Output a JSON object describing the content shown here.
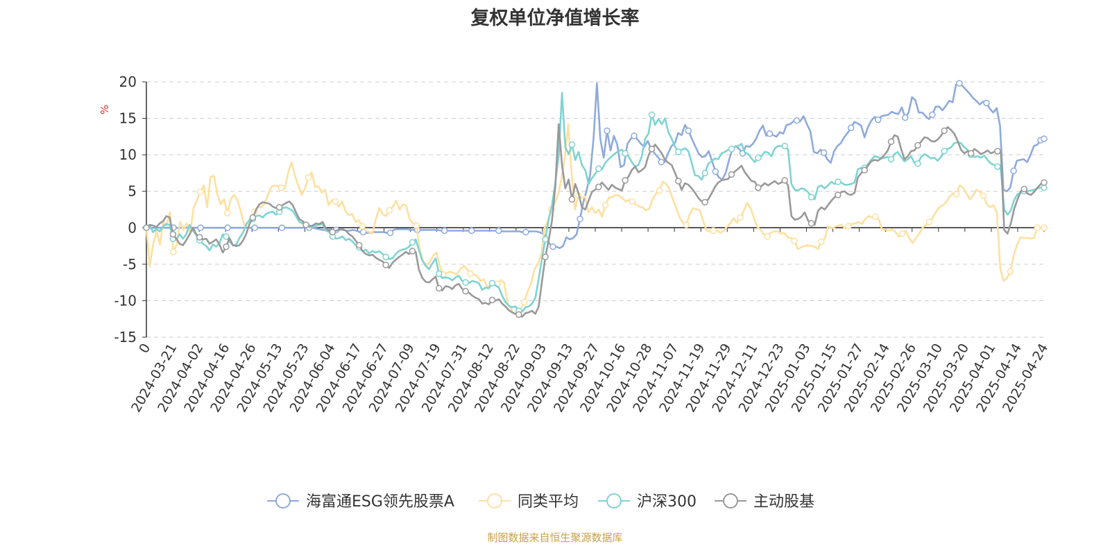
{
  "title": "复权单位净值增长率",
  "footer": "制图数据来自恒生聚源数据库",
  "chart_data": {
    "type": "line",
    "ylabel": "%",
    "ylim": [
      -15,
      20
    ],
    "yticks": [
      -15,
      -10,
      -5,
      0,
      5,
      10,
      15,
      20
    ],
    "grid": true,
    "legend_position": "bottom",
    "x_tick_labels": [
      "0",
      "2024-03-21",
      "2024-04-02",
      "2024-04-16",
      "2024-04-26",
      "2024-05-13",
      "2024-05-23",
      "2024-06-04",
      "2024-06-17",
      "2024-06-27",
      "2024-07-09",
      "2024-07-19",
      "2024-07-31",
      "2024-08-12",
      "2024-08-22",
      "2024-09-03",
      "2024-09-13",
      "2024-09-27",
      "2024-10-16",
      "2024-10-28",
      "2024-11-07",
      "2024-11-19",
      "2024-11-29",
      "2024-12-11",
      "2024-12-23",
      "2025-01-03",
      "2025-01-15",
      "2025-01-27",
      "2025-02-14",
      "2025-02-26",
      "2025-03-10",
      "2025-03-20",
      "2025-04-01",
      "2025-04-14",
      "2025-04-24"
    ],
    "series": [
      {
        "name": "海富通ESG领先股票A",
        "color": "#8eaadb",
        "values": [
          0,
          0,
          0,
          0,
          0,
          0,
          0,
          0,
          0,
          0,
          0,
          0,
          0,
          0,
          0,
          0,
          0,
          0,
          0,
          0,
          0,
          0,
          0,
          0,
          0,
          0,
          0,
          0,
          0,
          0,
          0,
          0,
          0,
          0,
          0,
          0,
          0,
          0,
          0,
          0,
          0,
          0,
          0,
          0,
          0,
          0,
          0,
          0,
          0,
          0,
          -0.1,
          -0.2,
          -0.3,
          -0.3,
          -0.2,
          -0.3,
          -0.3,
          -0.2,
          -0.3,
          -0.4,
          -0.4,
          -0.3,
          -0.4,
          -0.6,
          -0.6,
          -0.7,
          -0.7,
          -0.6,
          -0.6,
          -0.6,
          -0.6,
          -0.7,
          -0.7,
          -0.3,
          -0.2,
          -0.2,
          -0.2,
          -0.2,
          -0.3,
          -0.3,
          -0.3,
          -0.3,
          -0.3,
          -0.3,
          -0.3,
          -0.3,
          -0.3,
          -0.4,
          -0.4,
          -0.4,
          -0.4,
          -0.4,
          -0.4,
          -0.4,
          -0.4,
          -0.4,
          -0.4,
          -0.4,
          -0.4,
          -0.4,
          -0.4,
          -0.4,
          -0.4,
          -0.4,
          -0.4,
          -0.5,
          -0.5,
          -0.5,
          -0.5,
          -0.5,
          -0.5,
          -0.6,
          -0.6,
          -0.5,
          -0.5,
          -0.5,
          -0.6,
          -0.8,
          -1.2,
          -2.2,
          -2.6,
          -2.6,
          -2.8,
          -2.5,
          -1.3,
          -1.6,
          -1.4,
          -0.9,
          1.2,
          3.5,
          5.2,
          7.3,
          12.3,
          19.8,
          12.2,
          9.6,
          13.3,
          10.6,
          12.6,
          11.4,
          8.3,
          8.6,
          11.5,
          12.2,
          12.6,
          12.1,
          11.5,
          11.1,
          11.9,
          10.8,
          10.2,
          9.7,
          9.0,
          9.0,
          10.2,
          11.2,
          11.6,
          13.0,
          12.7,
          14.1,
          13.3,
          12.2,
          11.2,
          10.2,
          9.7,
          9.8,
          10.5,
          9.1,
          7.7,
          6.9,
          6.6,
          7.5,
          9.3,
          10.8,
          11.2,
          10.8,
          10.2,
          11.2,
          11.1,
          11.5,
          12.2,
          13.3,
          14.0,
          12.6,
          12.9,
          12.7,
          12.5,
          13.1,
          12.9,
          14.1,
          14.2,
          14.6,
          14.7,
          14.6,
          15.3,
          14.2,
          13.2,
          10.4,
          10.2,
          10.7,
          10.3,
          9.4,
          8.9,
          10.5,
          11.2,
          11.6,
          12.4,
          13.0,
          13.7,
          14.5,
          14.3,
          14.0,
          12.4,
          13.8,
          14.7,
          15.2,
          14.8,
          15.3,
          15.4,
          15.5,
          15.9,
          15.7,
          15.6,
          16.5,
          15.1,
          15.8,
          17.9,
          17.5,
          15.8,
          15.8,
          15.3,
          14.9,
          15.5,
          16.6,
          16.6,
          16.1,
          16.7,
          17.4,
          17.2,
          19.6,
          19.8,
          19.4,
          18.9,
          18.4,
          17.8,
          17.4,
          16.9,
          17.3,
          17.1,
          16.3,
          15.8,
          16.4,
          14.0,
          5.2,
          5.0,
          5.5,
          7.8,
          9.2,
          9.3,
          9.4,
          9.0,
          10.0,
          11.2,
          11.4,
          12.0,
          12.2
        ]
      },
      {
        "name": "同类平均",
        "color": "#fde0a0",
        "values": [
          0,
          -5.3,
          -2.3,
          -0.5,
          -2.3,
          0.8,
          0.3,
          2.1,
          -3.3,
          -2.3,
          0.8,
          -0.3,
          0.6,
          -0.7,
          2.8,
          3.8,
          4.9,
          5.8,
          2.8,
          7.0,
          7.1,
          4.6,
          3.2,
          3.9,
          2.0,
          3.9,
          4.5,
          3.8,
          2.2,
          0.4,
          0.7,
          1.2,
          2.2,
          2.9,
          2.8,
          3.3,
          4.5,
          5.6,
          5.8,
          5.7,
          5.5,
          5.4,
          7.5,
          9.0,
          7.2,
          5.8,
          4.5,
          5.4,
          6.9,
          7.6,
          5.6,
          5.7,
          4.8,
          5.2,
          3.1,
          3.8,
          3.6,
          2.9,
          3.6,
          2.3,
          1.7,
          1.9,
          0.8,
          1.0,
          0.2,
          -0.4,
          -0.6,
          -0.8,
          1.2,
          2.7,
          1.9,
          1.6,
          2.4,
          2.9,
          3.7,
          2.5,
          3.2,
          3.0,
          1.2,
          0.6,
          0.3,
          -2.9,
          -4.6,
          -5.1,
          -4.7,
          -3.8,
          -3.4,
          -5.3,
          -6.4,
          -6.2,
          -6.0,
          -6.2,
          -6.4,
          -5.7,
          -5.2,
          -5.7,
          -6.3,
          -6.4,
          -6.6,
          -7.3,
          -7.1,
          -8.1,
          -8.0,
          -7.6,
          -7.7,
          -7.2,
          -7.5,
          -10.3,
          -11.1,
          -11.9,
          -11.5,
          -11.0,
          -10.2,
          -8.7,
          -7.6,
          -5.7,
          -5.0,
          -3.7,
          -0.1,
          1.0,
          2.5,
          3.3,
          4.6,
          6.7,
          9.7,
          14.2,
          7.5,
          2.5,
          4.4,
          4.1,
          4.3,
          2.1,
          2.8,
          2.0,
          2.5,
          1.5,
          3.1,
          4.1,
          4.2,
          4.5,
          4.4,
          4.1,
          3.6,
          3.8,
          3.6,
          3.2,
          2.9,
          2.8,
          2.4,
          2.6,
          3.9,
          4.7,
          5.1,
          6.3,
          6.0,
          5.3,
          3.9,
          2.7,
          1.4,
          0.7,
          0.4,
          1.9,
          2.7,
          2.5,
          2.4,
          0.9,
          -0.4,
          -0.5,
          -0.4,
          -0.3,
          -0.7,
          -0.4,
          0.1,
          0.6,
          1.3,
          0.7,
          1.4,
          2.3,
          3.4,
          2.7,
          1.4,
          0.1,
          -0.3,
          -0.9,
          -1.2,
          -0.7,
          -0.5,
          -0.5,
          -0.8,
          -0.7,
          -1.3,
          -1.4,
          -1.8,
          -2.9,
          -2.7,
          -2.5,
          -2.4,
          -2.5,
          -2.6,
          -2.9,
          -1.9,
          -1.5,
          0.2,
          -0.1,
          0.1,
          0.3,
          0.4,
          -0.1,
          0.2,
          0.5,
          0.6,
          0.8,
          0.5,
          1.2,
          1.6,
          1.4,
          1.5,
          1.2,
          -0.3,
          -0.2,
          -0.4,
          -0.2,
          -0.6,
          -1.2,
          -0.8,
          -0.4,
          -1.4,
          -2.1,
          -1.4,
          -0.8,
          0.0,
          0.4,
          0.8,
          1.4,
          2.2,
          2.8,
          3.1,
          3.5,
          4.3,
          4.7,
          4.6,
          5.8,
          5.5,
          4.7,
          3.9,
          4.5,
          5.2,
          4.9,
          4.4,
          3.3,
          2.8,
          3.1,
          2.1,
          -5.6,
          -7.3,
          -6.9,
          -6.0,
          -3.8,
          -2.3,
          -1.3,
          -1.4,
          -1.4,
          -1.5,
          -1.4,
          0.0,
          0.0,
          0.0
        ]
      },
      {
        "name": "沪深300",
        "color": "#7fd3d3",
        "values": [
          0,
          0.3,
          -0.6,
          -0.2,
          -0.5,
          0.2,
          0.5,
          0.4,
          -1.5,
          -1.6,
          -0.9,
          -1.5,
          -0.9,
          0.4,
          -0.4,
          -1.0,
          -1.7,
          -2.2,
          -2.5,
          -3.1,
          -2.3,
          -2.6,
          -2.1,
          -0.9,
          -1.2,
          -1.9,
          -2.4,
          -2.3,
          -1.4,
          -0.7,
          0.4,
          1.1,
          1.2,
          1.6,
          1.7,
          1.4,
          1.9,
          2.1,
          2.2,
          1.8,
          2.2,
          2.7,
          2.8,
          2.6,
          2.3,
          1.6,
          0.8,
          0.6,
          0.4,
          0.1,
          0.1,
          0.3,
          0.4,
          0.5,
          -0.4,
          -0.6,
          -1.2,
          -1.5,
          -1.4,
          -1.2,
          -1.7,
          -1.5,
          -1.9,
          -2.4,
          -2.7,
          -3.2,
          -3.0,
          -3.5,
          -3.2,
          -3.4,
          -3.2,
          -3.6,
          -4.0,
          -4.3,
          -4.2,
          -3.6,
          -3.2,
          -3.0,
          -2.9,
          -2.6,
          -2.0,
          -1.6,
          -3.1,
          -4.5,
          -5.2,
          -5.7,
          -4.9,
          -4.2,
          -6.3,
          -6.9,
          -6.8,
          -6.9,
          -7.2,
          -6.8,
          -6.6,
          -7.3,
          -7.5,
          -7.6,
          -7.3,
          -7.4,
          -7.6,
          -8.5,
          -8.2,
          -8.3,
          -7.6,
          -7.9,
          -8.2,
          -9.3,
          -10.2,
          -10.7,
          -10.9,
          -10.8,
          -11.4,
          -11.5,
          -10.9,
          -10.8,
          -10.4,
          -9.6,
          -7.0,
          -4.2,
          -1.6,
          1.2,
          3.1,
          6.2,
          9.8,
          18.5,
          11.0,
          10.1,
          11.4,
          9.3,
          10.4,
          8.6,
          7.9,
          6.0,
          6.8,
          7.4,
          8.1,
          8.0,
          8.9,
          9.4,
          9.8,
          10.2,
          10.5,
          10.7,
          10.2,
          9.8,
          9.0,
          8.4,
          8.6,
          9.8,
          12.2,
          12.9,
          15.5,
          14.1,
          14.9,
          14.2,
          15.0,
          13.1,
          12.2,
          11.1,
          10.4,
          10.7,
          10.9,
          10.5,
          8.9,
          7.2,
          7.1,
          6.6,
          7.5,
          8.8,
          9.1,
          9.5,
          9.4,
          10.2,
          10.4,
          10.7,
          10.8,
          11.1,
          11.2,
          11.5,
          10.3,
          10.1,
          9.5,
          9.0,
          9.6,
          9.8,
          10.4,
          10.3,
          9.8,
          10.9,
          11.2,
          11.2,
          11.2,
          10.7,
          6.0,
          5.2,
          5.1,
          5.4,
          5.3,
          4.9,
          4.2,
          3.9,
          5.6,
          5.8,
          5.4,
          5.8,
          6.3,
          6.0,
          6.3,
          6.2,
          5.9,
          5.9,
          6.0,
          6.2,
          8.0,
          8.2,
          8.2,
          8.7,
          9.3,
          9.8,
          9.7,
          9.5,
          9.6,
          9.7,
          9.4,
          10.1,
          10.4,
          9.7,
          9.1,
          9.4,
          9.8,
          8.9,
          8.8,
          9.7,
          10.1,
          9.8,
          9.5,
          9.6,
          9.2,
          9.7,
          10.5,
          10.8,
          11.0,
          11.6,
          11.7,
          11.6,
          11.0,
          10.7,
          10.0,
          9.7,
          9.8,
          9.6,
          9.9,
          9.3,
          8.8,
          8.6,
          8.4,
          8.0,
          2.5,
          1.8,
          2.4,
          3.8,
          4.6,
          4.8,
          5.0,
          5.0,
          5.1,
          5.2,
          5.4,
          5.5,
          5.5
        ]
      },
      {
        "name": "主动股基",
        "color": "#999999",
        "values": [
          0,
          0.4,
          0.3,
          0.1,
          0.6,
          0.9,
          1.6,
          1.4,
          -0.9,
          -1.5,
          -2.2,
          -2.4,
          -1.7,
          -0.9,
          0.0,
          -0.9,
          -1.3,
          -1.6,
          -1.5,
          -2.2,
          -1.9,
          -1.6,
          -2.3,
          -3.4,
          -2.6,
          -1.4,
          -2.4,
          -2.5,
          -2.4,
          -1.8,
          -0.9,
          0.5,
          1.4,
          2.5,
          3.2,
          3.5,
          3.4,
          3.3,
          2.9,
          2.7,
          2.8,
          3.1,
          3.4,
          3.6,
          3.1,
          2.1,
          1.2,
          0.9,
          0.4,
          0.2,
          0.3,
          0.6,
          0.5,
          0.8,
          -0.1,
          -0.4,
          -0.6,
          -0.4,
          -0.3,
          -0.2,
          -0.4,
          -0.9,
          -1.2,
          -1.8,
          -2.4,
          -3.2,
          -3.6,
          -3.8,
          -3.7,
          -4.1,
          -4.4,
          -4.6,
          -5.1,
          -5.5,
          -4.8,
          -4.4,
          -4.0,
          -3.7,
          -3.3,
          -3.6,
          -3.2,
          -3.3,
          -5.8,
          -6.9,
          -7.4,
          -7.5,
          -7.1,
          -6.7,
          -8.3,
          -8.6,
          -8.0,
          -8.1,
          -8.4,
          -7.9,
          -7.7,
          -8.4,
          -8.7,
          -8.9,
          -9.3,
          -9.6,
          -9.8,
          -10.4,
          -10.3,
          -10.5,
          -9.9,
          -10.0,
          -9.8,
          -10.4,
          -10.8,
          -11.3,
          -11.6,
          -11.8,
          -11.9,
          -12.2,
          -11.7,
          -11.6,
          -11.4,
          -11.8,
          -10.8,
          -7.3,
          -4.0,
          -1.7,
          1.0,
          5.7,
          14.2,
          8.6,
          5.4,
          6.6,
          3.9,
          6.0,
          4.7,
          2.8,
          2.5,
          3.7,
          4.9,
          5.2,
          5.6,
          6.2,
          5.7,
          5.2,
          5.9,
          5.5,
          5.3,
          5.1,
          6.5,
          7.0,
          7.9,
          8.4,
          7.6,
          7.9,
          8.3,
          9.9,
          10.8,
          11.4,
          10.8,
          10.2,
          9.3,
          8.9,
          8.6,
          7.5,
          6.4,
          5.2,
          6.1,
          5.9,
          5.4,
          4.8,
          4.1,
          3.6,
          3.5,
          3.9,
          4.7,
          5.6,
          6.2,
          6.5,
          6.6,
          6.7,
          7.3,
          7.7,
          8.1,
          8.5,
          7.6,
          7.0,
          6.4,
          6.3,
          5.5,
          5.7,
          6.1,
          5.8,
          6.1,
          6.4,
          6.0,
          6.2,
          6.5,
          5.8,
          1.6,
          1.1,
          1.2,
          1.5,
          2.1,
          1.0,
          0.6,
          0.4,
          2.3,
          2.8,
          2.5,
          3.1,
          3.7,
          4.2,
          4.5,
          4.9,
          5.0,
          4.6,
          4.5,
          4.8,
          6.9,
          7.5,
          7.9,
          8.5,
          9.1,
          9.3,
          9.2,
          9.5,
          10.0,
          10.6,
          11.8,
          12.7,
          12.5,
          10.8,
          9.4,
          9.8,
          10.5,
          10.6,
          11.3,
          11.8,
          12.4,
          12.3,
          11.9,
          11.8,
          12.1,
          12.6,
          13.3,
          13.8,
          13.4,
          12.9,
          11.9,
          10.7,
          10.2,
          10.5,
          10.2,
          10.8,
          10.5,
          10.1,
          10.3,
          10.6,
          10.2,
          10.4,
          10.5,
          10.3,
          -0.3,
          -0.8,
          0.6,
          2.6,
          3.9,
          5.0,
          5.3,
          4.7,
          4.5,
          4.9,
          5.5,
          6.0,
          6.2
        ]
      }
    ]
  }
}
